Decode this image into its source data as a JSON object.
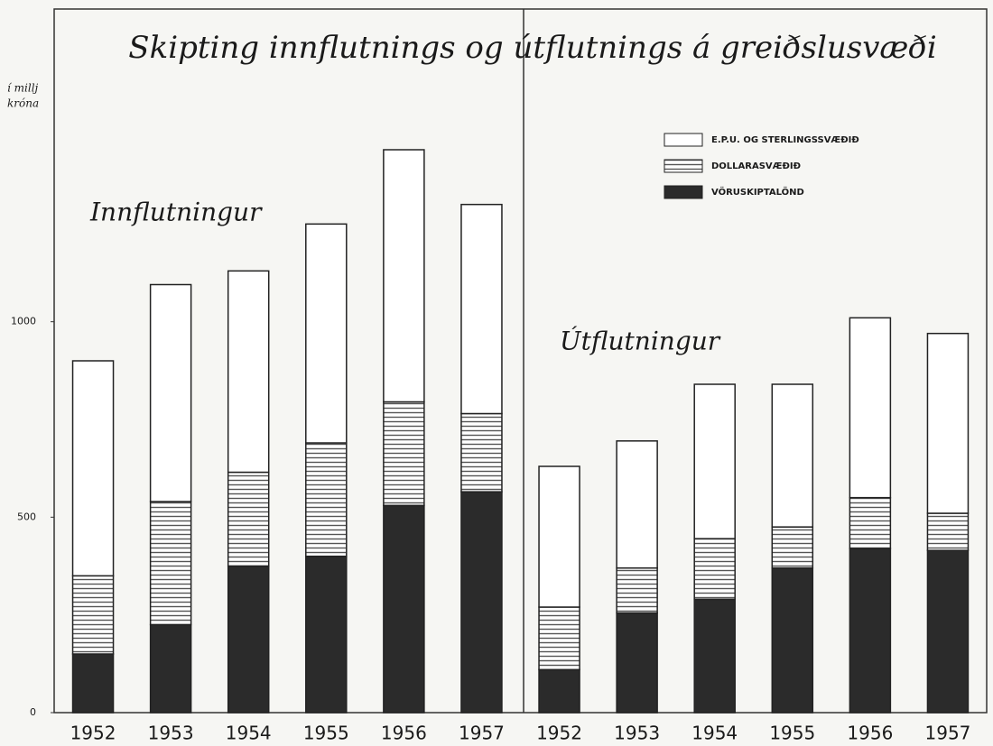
{
  "chart_data": {
    "type": "stacked_bar",
    "title": "Skipting innflutnings og útflutnings á greiðslusvæði",
    "y_label": [
      "í millj",
      "króna"
    ],
    "annotations": [
      "Innflutningur",
      "Útflutningur"
    ],
    "categories": [
      "1952",
      "1953",
      "1954",
      "1955",
      "1956",
      "1957",
      "1952",
      "1953",
      "1954",
      "1955",
      "1956",
      "1957"
    ],
    "series": [
      {
        "name": "VÖRUSKIPTALÖND",
        "color": "#2b2b2b",
        "values": [
          150,
          225,
          375,
          400,
          530,
          565,
          110,
          255,
          290,
          370,
          420,
          415
        ]
      },
      {
        "name": "DOLLARASVÆÐIÐ",
        "color": "#555555",
        "hatch": "horizontal",
        "values": [
          200,
          315,
          240,
          290,
          265,
          200,
          160,
          115,
          155,
          105,
          130,
          95
        ]
      },
      {
        "name": "E.P.U. OG STERLINGSSVÆÐIÐ",
        "color": "#ffffff",
        "values": [
          550,
          555,
          515,
          560,
          645,
          535,
          360,
          325,
          395,
          365,
          460,
          460
        ]
      }
    ],
    "ylim": [
      0,
      1800
    ],
    "yticks": [
      0,
      500,
      1000
    ],
    "grid": false,
    "legend": "upper right"
  }
}
